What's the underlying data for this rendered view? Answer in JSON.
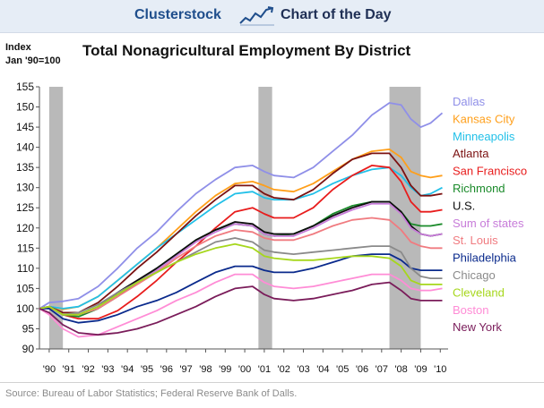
{
  "header": {
    "brand": "Clusterstock",
    "subtitle": "Chart of the Day"
  },
  "chart_data": {
    "type": "line",
    "title": "Total Nonagricultural Employment By District",
    "ylabel_lines": [
      "Index",
      "Jan '90=100"
    ],
    "ylim": [
      90,
      155
    ],
    "yticks": [
      90,
      95,
      100,
      105,
      110,
      115,
      120,
      125,
      130,
      135,
      140,
      145,
      150,
      155
    ],
    "xlim": [
      1990,
      2010.9
    ],
    "xticks": [
      {
        "value": 1990.5,
        "label": "'90"
      },
      {
        "value": 1991.5,
        "label": "'91"
      },
      {
        "value": 1992.5,
        "label": "'92"
      },
      {
        "value": 1993.5,
        "label": "'93"
      },
      {
        "value": 1994.5,
        "label": "'94"
      },
      {
        "value": 1995.5,
        "label": "'95"
      },
      {
        "value": 1996.5,
        "label": "'96"
      },
      {
        "value": 1997.5,
        "label": "'97"
      },
      {
        "value": 1998.5,
        "label": "'98"
      },
      {
        "value": 1999.5,
        "label": "'99"
      },
      {
        "value": 2000.5,
        "label": "'00"
      },
      {
        "value": 2001.5,
        "label": "'01"
      },
      {
        "value": 2002.5,
        "label": "'02"
      },
      {
        "value": 2003.5,
        "label": "'03"
      },
      {
        "value": 2004.5,
        "label": "'04"
      },
      {
        "value": 2005.5,
        "label": "'05"
      },
      {
        "value": 2006.5,
        "label": "'06"
      },
      {
        "value": 2007.5,
        "label": "'07"
      },
      {
        "value": 2008.5,
        "label": "'08"
      },
      {
        "value": 2009.5,
        "label": "'09"
      },
      {
        "value": 2010.5,
        "label": "'10"
      }
    ],
    "recessions": [
      [
        1990.5,
        1991.2
      ],
      [
        2001.2,
        2001.9
      ],
      [
        2007.9,
        2009.5
      ]
    ],
    "x": [
      1990,
      1990.5,
      1991.2,
      1992,
      1993,
      1994,
      1995,
      1996,
      1997,
      1998,
      1999,
      2000,
      2000.9,
      2001.5,
      2002,
      2003,
      2004,
      2005,
      2006,
      2007,
      2007.9,
      2008.5,
      2009,
      2009.5,
      2010,
      2010.6
    ],
    "series": [
      {
        "name": "Dallas",
        "color": "#8f8fe8",
        "values": [
          100,
          101.5,
          101.8,
          102.5,
          105.5,
          110,
          115,
          119,
          124,
          128.5,
          132,
          135,
          135.5,
          134,
          133,
          132.5,
          135,
          139,
          143,
          148,
          151,
          150.5,
          147,
          145,
          146,
          148.5
        ]
      },
      {
        "name": "Kansas City",
        "color": "#ff9f1a",
        "values": [
          100,
          100.5,
          99.8,
          100.5,
          103,
          107,
          111,
          115,
          119.5,
          124,
          128,
          131,
          131.5,
          130.5,
          129.5,
          129,
          131,
          134,
          137,
          139,
          139.5,
          137.5,
          134,
          133,
          132.5,
          133
        ]
      },
      {
        "name": "Minneapolis",
        "color": "#22c0e8",
        "values": [
          100,
          100.5,
          100,
          100.5,
          103,
          107,
          111,
          115,
          118.5,
          122,
          125.5,
          128.5,
          129,
          127.5,
          127,
          127,
          128.5,
          131,
          133,
          134.5,
          135,
          133,
          130,
          128,
          128.5,
          130
        ]
      },
      {
        "name": "Atlanta",
        "color": "#7b1212",
        "values": [
          100,
          100.5,
          99,
          99,
          101.5,
          105.5,
          110,
          114,
          118.5,
          123,
          127,
          130.5,
          130.5,
          128.5,
          127.5,
          127,
          129.5,
          133.5,
          137,
          138.5,
          138.5,
          135,
          130.5,
          128,
          128,
          128.5
        ]
      },
      {
        "name": "San Francisco",
        "color": "#e81c1c",
        "values": [
          100,
          100.5,
          98.5,
          97.5,
          97.5,
          99.5,
          103,
          107,
          111.5,
          115.5,
          120,
          124,
          125,
          123.5,
          122.5,
          122.5,
          125,
          129.5,
          133,
          135.5,
          135,
          131.5,
          126.5,
          124,
          124,
          124.5
        ]
      },
      {
        "name": "Richmond",
        "color": "#1a8a2a",
        "values": [
          100,
          100.5,
          98.5,
          98,
          100,
          103,
          106.5,
          110,
          113.5,
          117,
          119.5,
          121,
          120.5,
          118.5,
          118,
          118.5,
          120.5,
          123.5,
          125.5,
          126.5,
          126.5,
          124,
          121,
          120.5,
          120.5,
          121
        ]
      },
      {
        "name": "U.S.",
        "color": "#0d0d0d",
        "values": [
          100,
          100.5,
          98.5,
          98.5,
          100.5,
          104,
          107,
          110,
          113.5,
          117,
          119.5,
          121.5,
          121,
          119,
          118.5,
          118.5,
          120.5,
          123,
          125,
          126.5,
          126.5,
          124,
          120.5,
          118.5,
          118,
          118.5
        ]
      },
      {
        "name": "Sum of states",
        "color": "#c77bd9",
        "values": [
          100,
          100.5,
          98.5,
          98.5,
          100.5,
          103.5,
          106.5,
          109.5,
          113,
          116.5,
          119,
          121,
          120.5,
          118.5,
          118,
          118,
          120,
          122.5,
          124.5,
          126,
          126,
          123.5,
          120,
          118.5,
          118,
          118.5
        ]
      },
      {
        "name": "St. Louis",
        "color": "#f07b80",
        "values": [
          100,
          100.5,
          98.5,
          98.5,
          100,
          103,
          106,
          109,
          112.5,
          115.5,
          118,
          119.5,
          119,
          117.5,
          117,
          117,
          118.5,
          120.5,
          122,
          122.5,
          122,
          119.5,
          116.5,
          115.5,
          115,
          115
        ]
      },
      {
        "name": "Philadelphia",
        "color": "#0a2a8c",
        "values": [
          100,
          100,
          97.5,
          96.5,
          97,
          98.5,
          100.5,
          102,
          104,
          106.5,
          109,
          110.5,
          110.5,
          109.5,
          109,
          109,
          110,
          111.5,
          113,
          113.5,
          113.5,
          112,
          110,
          109.5,
          109.5,
          109.5
        ]
      },
      {
        "name": "Chicago",
        "color": "#8a8a8a",
        "values": [
          100,
          100.5,
          98.5,
          99,
          101,
          104,
          106.5,
          109,
          111.5,
          114,
          116.5,
          117.5,
          116.5,
          114.5,
          114,
          113.5,
          114,
          114.5,
          115,
          115.5,
          115.5,
          114,
          110,
          108,
          107.5,
          107.5
        ]
      },
      {
        "name": "Cleveland",
        "color": "#a6d71c",
        "values": [
          100,
          100.5,
          98.5,
          98.5,
          100.5,
          103.5,
          106.5,
          109,
          111.5,
          113.5,
          115,
          116,
          115,
          113,
          112.5,
          112,
          112,
          112.5,
          113,
          113,
          112.5,
          110.5,
          107,
          106,
          106,
          106
        ]
      },
      {
        "name": "Boston",
        "color": "#ff8cd6",
        "values": [
          100,
          98.5,
          95,
          93,
          93.5,
          95.5,
          97.5,
          99.5,
          102,
          104,
          106.5,
          108.5,
          108.5,
          106.5,
          105.5,
          105,
          105.5,
          106.5,
          107.5,
          108.5,
          108.5,
          107,
          105,
          104.5,
          104.5,
          105
        ]
      },
      {
        "name": "New York",
        "color": "#7a1c5a",
        "values": [
          100,
          99,
          96,
          94,
          93.5,
          94,
          95,
          96.5,
          98.5,
          100.5,
          103,
          105,
          105.5,
          103.5,
          102.5,
          102,
          102.5,
          103.5,
          104.5,
          106,
          106.5,
          104.5,
          102.5,
          102,
          102,
          102
        ]
      }
    ],
    "grid": false,
    "legend_position": "right"
  },
  "source": "Source: Bureau of Labor Statistics; Federal Reserve Bank of Dalls."
}
